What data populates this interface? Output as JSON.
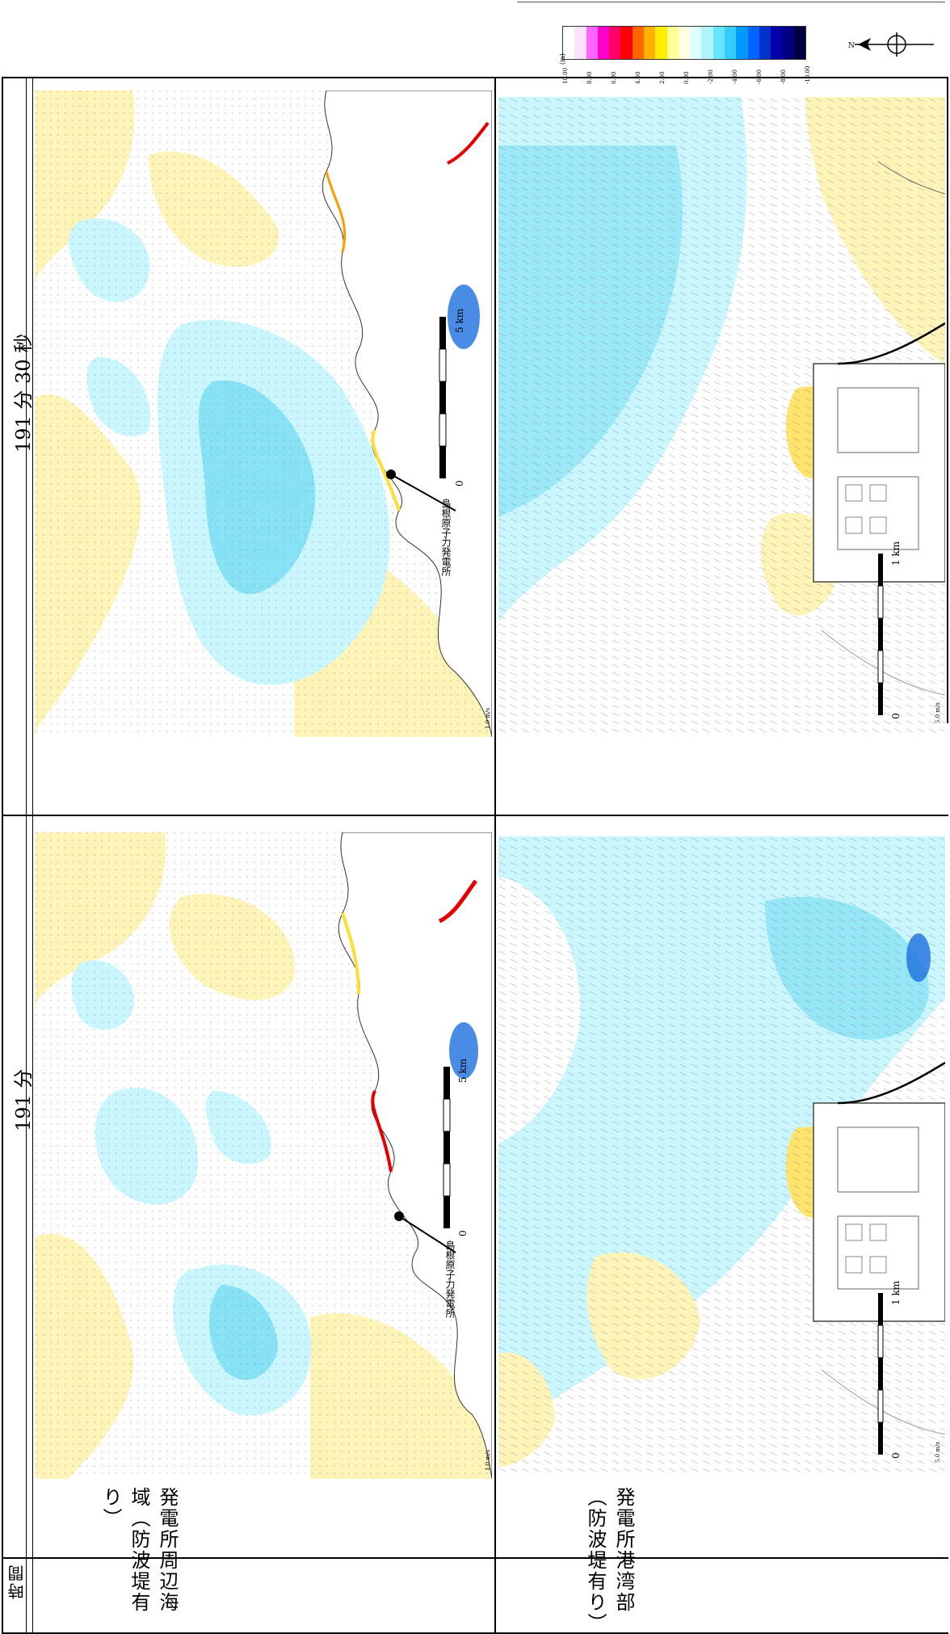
{
  "legend": {
    "unit": "(m)",
    "ticks": [
      "10.00",
      "8.00",
      "6.00",
      "4.00",
      "2.00",
      "0.00",
      "-2.00",
      "-4.00",
      "-6.00",
      "-8.00",
      "-10.00"
    ],
    "colors": [
      "#ffffff",
      "#ffe0ff",
      "#ff66ff",
      "#ff00cc",
      "#ff0066",
      "#ff0000",
      "#ff6600",
      "#ffb300",
      "#ffee00",
      "#ffff99",
      "#ffffe0",
      "#e0ffff",
      "#b2f5ff",
      "#66e5ff",
      "#33ccff",
      "#0099ff",
      "#0066ff",
      "#0033cc",
      "#0000aa",
      "#000080",
      "#000040"
    ],
    "north": "N"
  },
  "table": {
    "time_header": "時間",
    "row1_label": "発電所周辺海域（防波堤有り）",
    "row2_label": "発電所港湾部（防波堤有り）",
    "col1_time": "191 分",
    "col2_time": "191 分 30 秒"
  },
  "maps": {
    "region_scale": "5 km",
    "region_scale_zero": "0",
    "harbor_scale": "1 km",
    "harbor_scale_zero": "0",
    "plant_label": "島根原子力発電所",
    "region_velocity": "1.0 m/s",
    "harbor_velocity": "5.0 m/s"
  },
  "colors": {
    "positive_light": "#fff4b8",
    "positive_mid": "#ffe36b",
    "positive_strong": "#ff7a00",
    "positive_max": "#e60000",
    "negative_light": "#c9f6ff",
    "negative_mid": "#88e2f5",
    "negative_strong": "#1a6fe0",
    "land": "#ffffff"
  }
}
